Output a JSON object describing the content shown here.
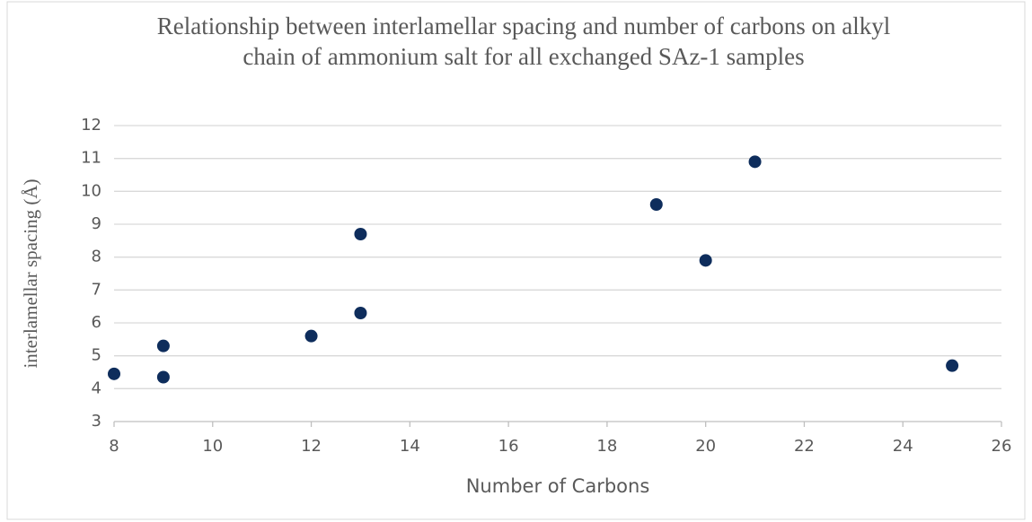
{
  "chart_data": {
    "type": "scatter",
    "title": "Relationship between interlamellar spacing and number of carbons on alkyl chain of ammonium salt for all exchanged SAz-1 samples",
    "xlabel": "Number of Carbons",
    "ylabel": "interlamellar spacing (Å)",
    "x": [
      8,
      9,
      9,
      12,
      13,
      13,
      19,
      20,
      21,
      25
    ],
    "values": [
      4.45,
      5.3,
      4.35,
      5.6,
      8.7,
      6.3,
      9.6,
      7.9,
      10.9,
      4.7
    ],
    "color": "#0e2d5c",
    "xlim": [
      8,
      26
    ],
    "xticks": [
      8,
      10,
      12,
      14,
      16,
      18,
      20,
      22,
      24,
      26
    ],
    "ylim": [
      3,
      12
    ],
    "yticks": [
      3,
      4,
      5,
      6,
      7,
      8,
      9,
      10,
      11,
      12
    ],
    "grid": true
  }
}
